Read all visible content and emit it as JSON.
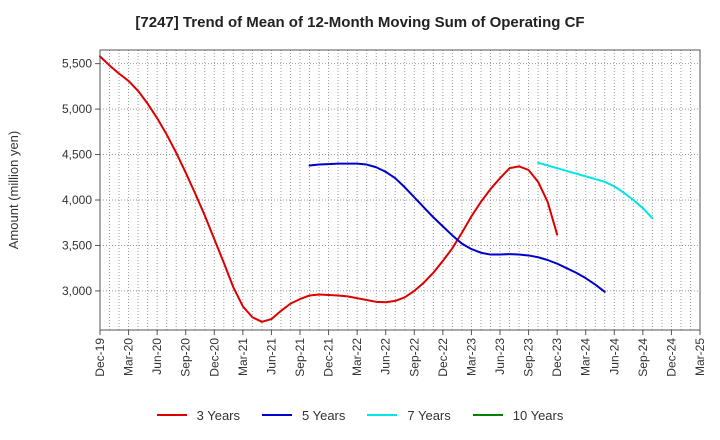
{
  "chart_data": {
    "type": "line",
    "title": "[7247]  Trend of Mean of 12-Month Moving Sum of Operating CF",
    "xlabel": "",
    "ylabel": "Amount (million yen)",
    "ylim": [
      2570,
      5650
    ],
    "yticks": [
      3000,
      3500,
      4000,
      4500,
      5000,
      5500
    ],
    "ytick_labels": [
      "3,000",
      "3,500",
      "4,000",
      "4,500",
      "5,000",
      "5,500"
    ],
    "x_start": "Dec-19",
    "x_end": "Mar-25",
    "x_tick_labels": [
      "Dec-19",
      "Mar-20",
      "Jun-20",
      "Sep-20",
      "Dec-20",
      "Mar-21",
      "Jun-21",
      "Sep-21",
      "Dec-21",
      "Mar-22",
      "Jun-22",
      "Sep-22",
      "Dec-22",
      "Mar-23",
      "Jun-23",
      "Sep-23",
      "Dec-23",
      "Mar-24",
      "Jun-24",
      "Sep-24",
      "Dec-24",
      "Mar-25"
    ],
    "grid": true,
    "legend_position": "bottom",
    "series": [
      {
        "name": "3 Years",
        "color": "#dd0000",
        "start": "Dec-19",
        "values": [
          5580,
          5480,
          5390,
          5310,
          5200,
          5060,
          4900,
          4720,
          4520,
          4300,
          4070,
          3830,
          3570,
          3310,
          3040,
          2830,
          2710,
          2660,
          2690,
          2780,
          2860,
          2910,
          2950,
          2960,
          2955,
          2950,
          2940,
          2920,
          2900,
          2880,
          2875,
          2890,
          2930,
          3000,
          3090,
          3200,
          3330,
          3470,
          3640,
          3820,
          3980,
          4120,
          4240,
          4350,
          4370,
          4330,
          4200,
          3980,
          3620
        ]
      },
      {
        "name": "5 Years",
        "color": "#0000cc",
        "start": "Oct-21",
        "values": [
          4380,
          4390,
          4395,
          4400,
          4400,
          4400,
          4390,
          4360,
          4310,
          4240,
          4140,
          4030,
          3920,
          3810,
          3710,
          3610,
          3520,
          3460,
          3420,
          3400,
          3400,
          3405,
          3400,
          3390,
          3370,
          3340,
          3300,
          3250,
          3200,
          3140,
          3070,
          2990
        ]
      },
      {
        "name": "7 Years",
        "color": "#00e5e5",
        "start": "Oct-23",
        "values": [
          4410,
          4380,
          4350,
          4320,
          4290,
          4260,
          4230,
          4200,
          4150,
          4080,
          4000,
          3910,
          3800
        ]
      },
      {
        "name": "10 Years",
        "color": "#008000",
        "start": "Sep-24",
        "values": []
      }
    ]
  }
}
